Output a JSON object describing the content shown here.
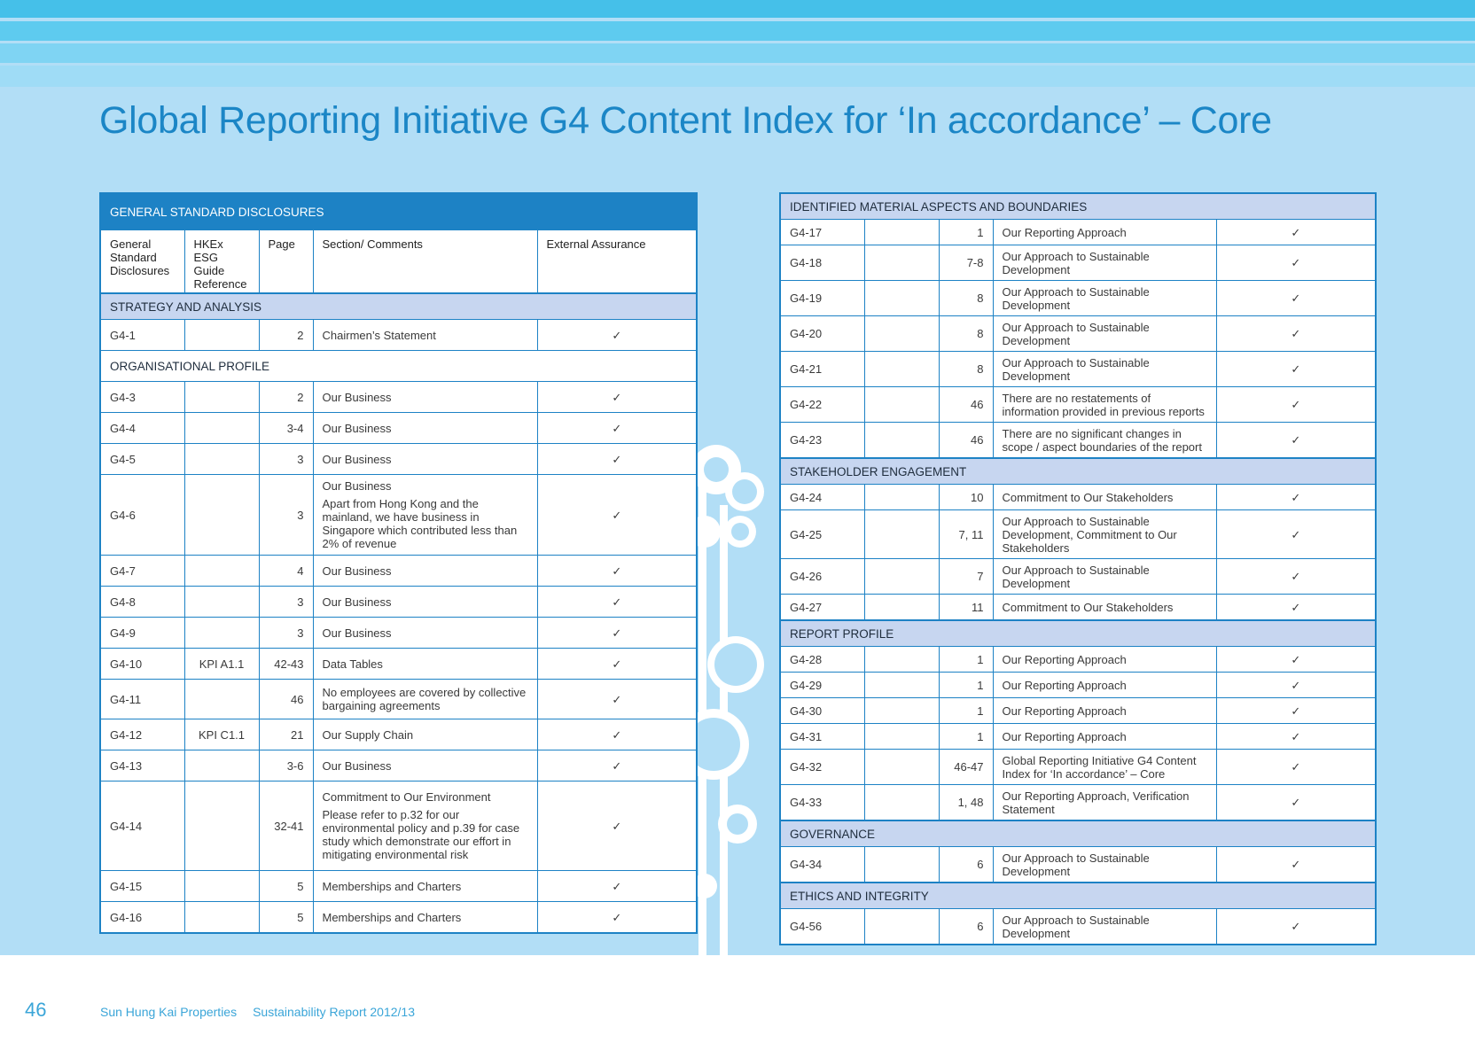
{
  "title": "Global Reporting Initiative G4 Content Index for ‘In accordance’ – Core",
  "left_table": {
    "band": "GENERAL STANDARD DISCLOSURES",
    "headers": [
      "General Standard Disclosures",
      "HKEx ESG Guide Reference",
      "Page",
      "Section/ Comments",
      "External Assurance"
    ],
    "section_strategy": "STRATEGY AND ANALYSIS",
    "section_org": "ORGANISATIONAL PROFILE",
    "check": "✓",
    "rows": [
      {
        "id": "G4-1",
        "ref": "",
        "page": "2",
        "comment": "Chairmen’s Statement",
        "note": ""
      },
      {
        "id": "G4-3",
        "ref": "",
        "page": "2",
        "comment": "Our Business",
        "note": ""
      },
      {
        "id": "G4-4",
        "ref": "",
        "page": "3-4",
        "comment": "Our Business",
        "note": ""
      },
      {
        "id": "G4-5",
        "ref": "",
        "page": "3",
        "comment": "Our Business",
        "note": ""
      },
      {
        "id": "G4-6",
        "ref": "",
        "page": "3",
        "comment": "Our Business",
        "note": "Apart from Hong Kong and the mainland, we have business in Singapore which contributed less than 2% of revenue"
      },
      {
        "id": "G4-7",
        "ref": "",
        "page": "4",
        "comment": "Our Business",
        "note": ""
      },
      {
        "id": "G4-8",
        "ref": "",
        "page": "3",
        "comment": "Our Business",
        "note": ""
      },
      {
        "id": "G4-9",
        "ref": "",
        "page": "3",
        "comment": "Our Business",
        "note": ""
      },
      {
        "id": "G4-10",
        "ref": "KPI A1.1",
        "page": "42-43",
        "comment": "Data Tables",
        "note": ""
      },
      {
        "id": "G4-11",
        "ref": "",
        "page": "46",
        "comment": "No employees are covered by collective bargaining agreements",
        "note": ""
      },
      {
        "id": "G4-12",
        "ref": "KPI C1.1",
        "page": "21",
        "comment": "Our Supply Chain",
        "note": ""
      },
      {
        "id": "G4-13",
        "ref": "",
        "page": "3-6",
        "comment": "Our Business",
        "note": ""
      },
      {
        "id": "G4-14",
        "ref": "",
        "page": "32-41",
        "comment": "Commitment to Our Environment",
        "note": "Please refer to p.32 for our environmental policy and p.39 for case study which demonstrate our effort in mitigating environmental risk"
      },
      {
        "id": "G4-15",
        "ref": "",
        "page": "5",
        "comment": "Memberships and Charters",
        "note": ""
      },
      {
        "id": "G4-16",
        "ref": "",
        "page": "5",
        "comment": "Memberships and Charters",
        "note": ""
      }
    ]
  },
  "right_table": {
    "sections": [
      {
        "label": "IDENTIFIED MATERIAL ASPECTS AND BOUNDARIES",
        "rows": [
          {
            "id": "G4-17",
            "page": "1",
            "comment": "Our Reporting Approach"
          },
          {
            "id": "G4-18",
            "page": "7-8",
            "comment": "Our Approach to Sustainable Development"
          },
          {
            "id": "G4-19",
            "page": "8",
            "comment": "Our Approach to Sustainable Development"
          },
          {
            "id": "G4-20",
            "page": "8",
            "comment": "Our Approach to Sustainable Development"
          },
          {
            "id": "G4-21",
            "page": "8",
            "comment": "Our Approach to Sustainable Development"
          },
          {
            "id": "G4-22",
            "page": "46",
            "comment": "There are no restatements of information provided in previous reports"
          },
          {
            "id": "G4-23",
            "page": "46",
            "comment": "There are no significant changes in scope / aspect boundaries of the report"
          }
        ]
      },
      {
        "label": "STAKEHOLDER ENGAGEMENT",
        "rows": [
          {
            "id": "G4-24",
            "page": "10",
            "comment": "Commitment to Our Stakeholders"
          },
          {
            "id": "G4-25",
            "page": "7, 11",
            "comment": "Our Approach to Sustainable Development, Commitment to Our Stakeholders"
          },
          {
            "id": "G4-26",
            "page": "7",
            "comment": "Our Approach to Sustainable Development"
          },
          {
            "id": "G4-27",
            "page": "11",
            "comment": "Commitment to Our Stakeholders"
          }
        ]
      },
      {
        "label": "REPORT PROFILE",
        "rows": [
          {
            "id": "G4-28",
            "page": "1",
            "comment": "Our Reporting Approach"
          },
          {
            "id": "G4-29",
            "page": "1",
            "comment": "Our Reporting Approach"
          },
          {
            "id": "G4-30",
            "page": "1",
            "comment": "Our Reporting Approach"
          },
          {
            "id": "G4-31",
            "page": "1",
            "comment": "Our Reporting Approach"
          },
          {
            "id": "G4-32",
            "page": "46-47",
            "comment": "Global Reporting Initiative G4 Content Index for ‘In accordance’ – Core"
          },
          {
            "id": "G4-33",
            "page": "1, 48",
            "comment": "Our Reporting Approach, Verification Statement"
          }
        ]
      },
      {
        "label": "GOVERNANCE",
        "rows": [
          {
            "id": "G4-34",
            "page": "6",
            "comment": "Our Approach to Sustainable Development"
          }
        ]
      },
      {
        "label": "ETHICS AND INTEGRITY",
        "rows": [
          {
            "id": "G4-56",
            "page": "6",
            "comment": "Our Approach to Sustainable Development"
          }
        ]
      }
    ]
  },
  "footer": {
    "page_number": "46",
    "company": "Sun Hung Kai Properties",
    "report": "Sustainability Report 2012/13"
  }
}
